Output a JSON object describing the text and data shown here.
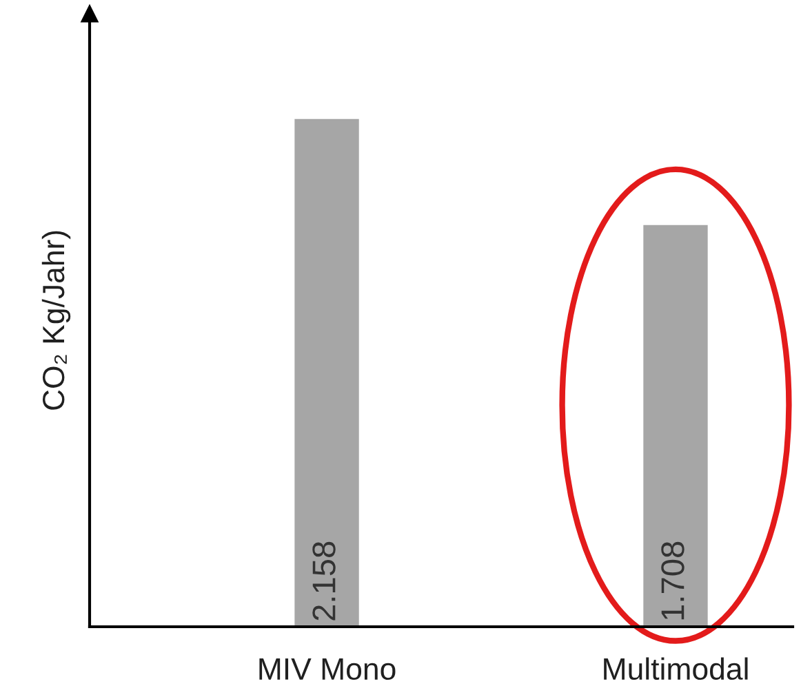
{
  "chart_data": {
    "type": "bar",
    "ylabel": "CO₂ Kg/Jahr)",
    "categories": [
      "MIV Mono",
      "Multimodal"
    ],
    "values": [
      2158,
      1708
    ],
    "value_labels": [
      "2.158",
      "1.708"
    ],
    "color": "#a6a6a6",
    "ylim": [
      0,
      2600
    ],
    "tick_labels": "x",
    "grid": false,
    "legend": false
  }
}
